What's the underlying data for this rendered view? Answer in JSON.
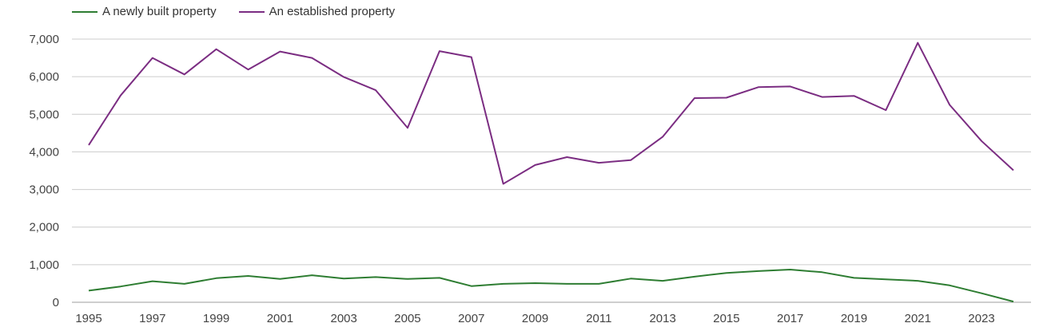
{
  "chart_data": {
    "type": "line",
    "categories": [
      1995,
      1996,
      1997,
      1998,
      1999,
      2000,
      2001,
      2002,
      2003,
      2004,
      2005,
      2006,
      2007,
      2008,
      2009,
      2010,
      2011,
      2012,
      2013,
      2014,
      2015,
      2016,
      2017,
      2018,
      2019,
      2020,
      2021,
      2022,
      2023,
      2024
    ],
    "x_tick_labels": [
      "1995",
      "1997",
      "1999",
      "2001",
      "2003",
      "2005",
      "2007",
      "2009",
      "2011",
      "2013",
      "2015",
      "2017",
      "2019",
      "2021",
      "2023"
    ],
    "y_tick_labels": [
      "0",
      "1,000",
      "2,000",
      "3,000",
      "4,000",
      "5,000",
      "6,000",
      "7,000"
    ],
    "y_ticks": [
      0,
      1000,
      2000,
      3000,
      4000,
      5000,
      6000,
      7000
    ],
    "ylim": [
      0,
      7000
    ],
    "xlim": [
      1995,
      2024
    ],
    "grid": "horizontal",
    "legend_position": "top-left",
    "series": [
      {
        "name": "A newly built property",
        "color": "#2e7d32",
        "values": [
          310,
          420,
          560,
          490,
          640,
          700,
          620,
          720,
          630,
          670,
          620,
          650,
          430,
          490,
          510,
          490,
          490,
          630,
          570,
          680,
          780,
          830,
          870,
          800,
          650,
          610,
          570,
          450,
          240,
          20
        ]
      },
      {
        "name": "An established property",
        "color": "#7b2d82",
        "values": [
          4180,
          5500,
          6500,
          6060,
          6730,
          6190,
          6670,
          6500,
          5990,
          5640,
          4640,
          6680,
          6520,
          3150,
          3650,
          3860,
          3710,
          3780,
          4400,
          5430,
          5440,
          5720,
          5740,
          5460,
          5490,
          5110,
          6900,
          5250,
          4290,
          3510
        ]
      }
    ],
    "title": "",
    "xlabel": "",
    "ylabel": ""
  }
}
